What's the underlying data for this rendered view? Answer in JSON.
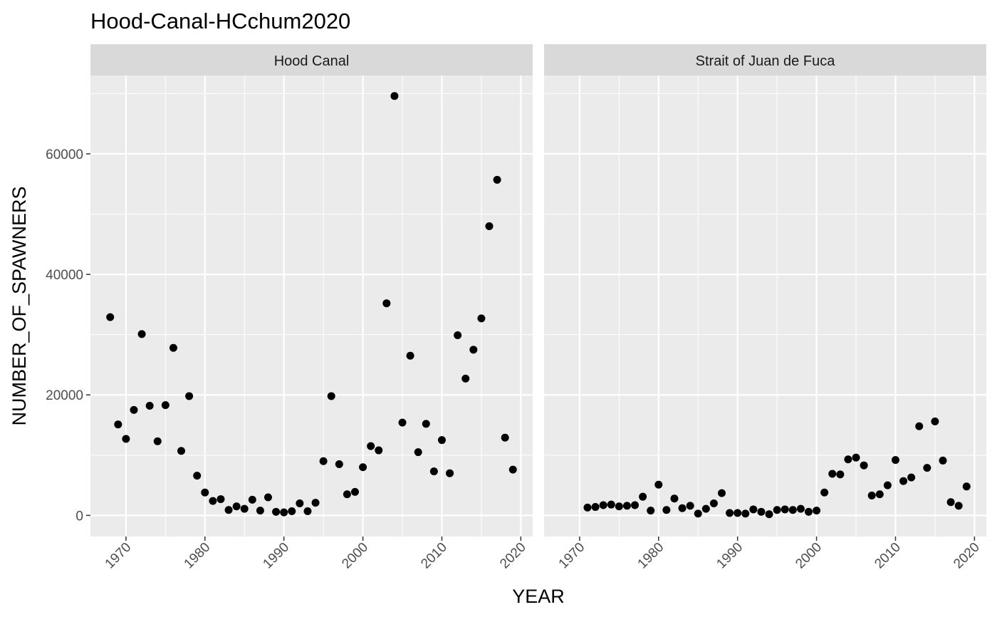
{
  "chart_data": {
    "type": "scatter",
    "title": "Hood-Canal-HCchum2020",
    "xlabel": "YEAR",
    "ylabel": "NUMBER_OF_SPAWNERS",
    "xlim": [
      1965.5,
      2021.5
    ],
    "ylim": [
      -3500,
      73000
    ],
    "x_ticks": [
      1970,
      1980,
      1990,
      2000,
      2010,
      2020
    ],
    "y_ticks": [
      0,
      20000,
      40000,
      60000
    ],
    "y_tick_labels": [
      "0",
      "20000",
      "40000",
      "60000"
    ],
    "grid": true,
    "point_color": "#000000",
    "panel_bg": "#ebebeb",
    "strip_bg": "#d9d9d9",
    "panels": [
      {
        "label": "Hood Canal",
        "x": [
          1968,
          1969,
          1970,
          1971,
          1972,
          1973,
          1974,
          1975,
          1976,
          1977,
          1978,
          1979,
          1980,
          1981,
          1982,
          1983,
          1984,
          1985,
          1986,
          1987,
          1988,
          1989,
          1990,
          1991,
          1992,
          1993,
          1994,
          1995,
          1996,
          1997,
          1998,
          1999,
          2000,
          2001,
          2002,
          2003,
          2004,
          2005,
          2006,
          2007,
          2008,
          2009,
          2010,
          2011,
          2012,
          2013,
          2014,
          2015,
          2016,
          2017,
          2018,
          2019
        ],
        "y": [
          32900,
          15100,
          12700,
          17500,
          30100,
          18200,
          12300,
          18300,
          27800,
          10700,
          19800,
          6600,
          3800,
          2400,
          2700,
          900,
          1500,
          1100,
          2600,
          800,
          3000,
          600,
          500,
          700,
          2000,
          700,
          2100,
          9000,
          19800,
          8500,
          3500,
          3900,
          8000,
          11500,
          10800,
          35200,
          69600,
          15400,
          26500,
          10500,
          15200,
          7300,
          12500,
          7000,
          29900,
          22700,
          27500,
          32700,
          48000,
          55700,
          12900,
          7600
        ]
      },
      {
        "label": "Strait of Juan de Fuca",
        "x": [
          1971,
          1972,
          1973,
          1974,
          1975,
          1976,
          1977,
          1978,
          1979,
          1980,
          1981,
          1982,
          1983,
          1984,
          1985,
          1986,
          1987,
          1988,
          1989,
          1990,
          1991,
          1992,
          1993,
          1994,
          1995,
          1996,
          1997,
          1998,
          1999,
          2000,
          2001,
          2002,
          2003,
          2004,
          2005,
          2006,
          2007,
          2008,
          2009,
          2010,
          2011,
          2012,
          2013,
          2014,
          2015,
          2016,
          2017,
          2018,
          2019
        ],
        "y": [
          1300,
          1400,
          1700,
          1800,
          1500,
          1600,
          1700,
          3100,
          800,
          5100,
          900,
          2800,
          1200,
          1600,
          300,
          1100,
          2000,
          3700,
          400,
          400,
          300,
          1000,
          600,
          200,
          900,
          1000,
          900,
          1100,
          600,
          800,
          3800,
          6900,
          6800,
          9300,
          9600,
          8300,
          3300,
          3500,
          5000,
          9200,
          5700,
          6300,
          14800,
          7900,
          15600,
          9100,
          2200,
          1600,
          4800
        ]
      }
    ]
  }
}
